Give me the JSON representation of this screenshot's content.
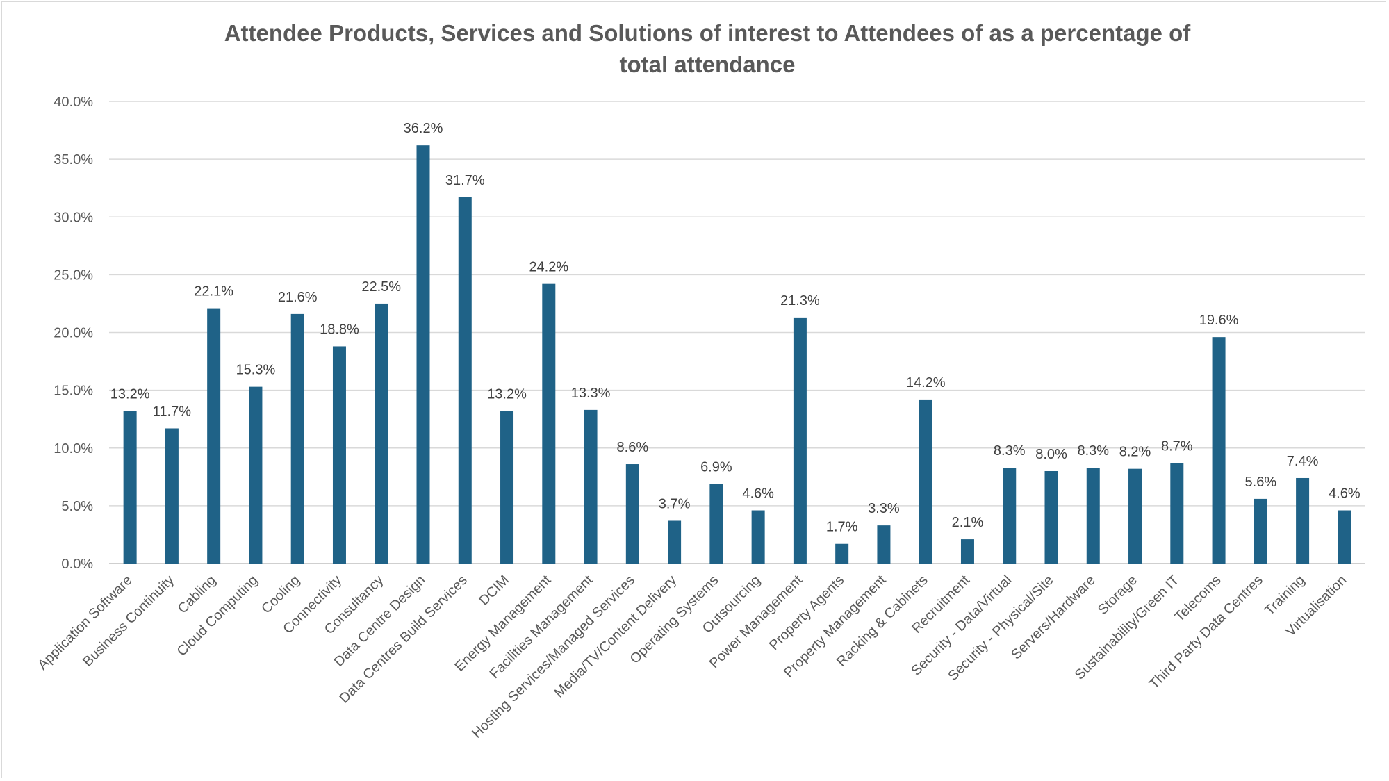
{
  "chart_data": {
    "type": "bar",
    "title_lines": [
      "Attendee Products, Services and Solutions of interest to Attendees of as a percentage of",
      "total attendance"
    ],
    "xlabel": "",
    "ylabel": "",
    "ylim": [
      0,
      40
    ],
    "y_ticks": [
      "0.0%",
      "5.0%",
      "10.0%",
      "15.0%",
      "20.0%",
      "25.0%",
      "30.0%",
      "35.0%",
      "40.0%"
    ],
    "grid": true,
    "legend": "none",
    "bar_color": "#1f6287",
    "categories": [
      "Application Software",
      "Business Continuity",
      "Cabling",
      "Cloud Computing",
      "Cooling",
      "Connectivity",
      "Consultancy",
      "Data Centre Design",
      "Data Centres Build Services",
      "DCIM",
      "Energy Management",
      "Facilities Management",
      "Hosting Services/Managed Services",
      "Media/TV/Content Delivery",
      "Operating Systems",
      "Outsourcing",
      "Power Management",
      "Property Agents",
      "Property Management",
      "Racking & Cabinets",
      "Recruitment",
      "Security - Data/Virtual",
      "Security - Physical/Site",
      "Servers/Hardware",
      "Storage",
      "Sustainability/Green IT",
      "Telecoms",
      "Third Party Data Centres",
      "Training",
      "Virtualisation"
    ],
    "values": [
      13.2,
      11.7,
      22.1,
      15.3,
      21.6,
      18.8,
      22.5,
      36.2,
      31.7,
      13.2,
      24.2,
      13.3,
      8.6,
      3.7,
      6.9,
      4.6,
      21.3,
      1.7,
      3.3,
      14.2,
      2.1,
      8.3,
      8.0,
      8.3,
      8.2,
      8.7,
      19.6,
      5.6,
      7.4,
      4.6
    ],
    "data_labels": [
      "13.2%",
      "11.7%",
      "22.1%",
      "15.3%",
      "21.6%",
      "18.8%",
      "22.5%",
      "36.2%",
      "31.7%",
      "13.2%",
      "24.2%",
      "13.3%",
      "8.6%",
      "3.7%",
      "6.9%",
      "4.6%",
      "21.3%",
      "1.7%",
      "3.3%",
      "14.2%",
      "2.1%",
      "8.3%",
      "8.0%",
      "8.3%",
      "8.2%",
      "8.7%",
      "19.6%",
      "5.6%",
      "7.4%",
      "4.6%"
    ]
  }
}
